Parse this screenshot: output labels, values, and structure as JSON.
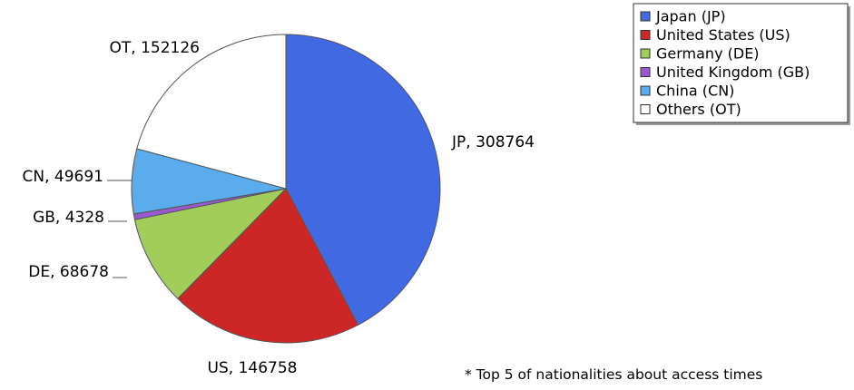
{
  "chart_data": {
    "type": "pie",
    "start": "top",
    "direction": "clockwise",
    "slices": [
      {
        "code": "JP",
        "name": "Japan (JP)",
        "value": 308764,
        "label": "JP, 308764",
        "color": "#4169e1"
      },
      {
        "code": "US",
        "name": "United States (US)",
        "value": 146758,
        "label": "US, 146758",
        "color": "#cd2626"
      },
      {
        "code": "DE",
        "name": "Germany (DE)",
        "value": 68678,
        "label": "DE, 68678",
        "color": "#a2cd5a"
      },
      {
        "code": "GB",
        "name": "United Kingdom (GB)",
        "value": 4328,
        "label": "GB, 4328",
        "color": "#9b59d0"
      },
      {
        "code": "CN",
        "name": "China (CN)",
        "value": 49691,
        "label": "CN, 49691",
        "color": "#5aacec"
      },
      {
        "code": "OT",
        "name": "Others (OT)",
        "value": 152126,
        "label": "OT, 152126",
        "color": "#ffffff"
      }
    ],
    "legend_position": "top-right",
    "footnote": "* Top 5 of nationalities about access times"
  }
}
